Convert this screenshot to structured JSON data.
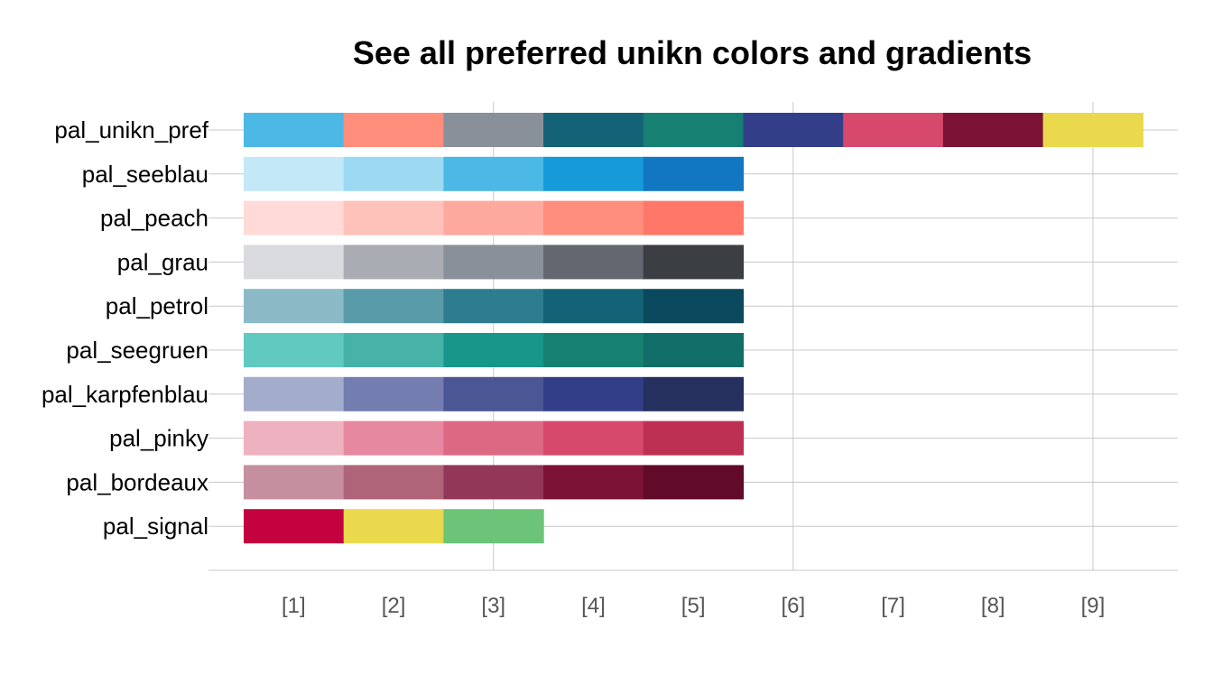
{
  "chart_data": {
    "type": "table",
    "title": "See all preferred unikn colors and gradients",
    "x_tick_labels": [
      "[1]",
      "[2]",
      "[3]",
      "[4]",
      "[5]",
      "[6]",
      "[7]",
      "[8]",
      "[9]"
    ],
    "grid": true,
    "palettes": [
      {
        "name": "pal_unikn_pref",
        "colors": [
          "#4CB8E6",
          "#FF8E7D",
          "#8A9099",
          "#136276",
          "#168073",
          "#323F88",
          "#D6486C",
          "#7C1235",
          "#EAD84D"
        ]
      },
      {
        "name": "pal_seeblau",
        "colors": [
          "#C3E8F7",
          "#9CDAF2",
          "#4CB8E6",
          "#169ADA",
          "#1277C2"
        ]
      },
      {
        "name": "pal_peach",
        "colors": [
          "#FFDAD7",
          "#FEC2BA",
          "#FEA99D",
          "#FF8E7D",
          "#FF7769"
        ]
      },
      {
        "name": "pal_grau",
        "colors": [
          "#DADBDF",
          "#A9ACB3",
          "#8A9099",
          "#636770",
          "#3B3E43"
        ]
      },
      {
        "name": "pal_petrol",
        "colors": [
          "#8BBAC6",
          "#5A9BAA",
          "#2D7D8F",
          "#136276",
          "#0B4A5E"
        ]
      },
      {
        "name": "pal_seegruen",
        "colors": [
          "#61C9C0",
          "#46B2A8",
          "#17968A",
          "#168073",
          "#126E68"
        ]
      },
      {
        "name": "pal_karpfenblau",
        "colors": [
          "#A4ACCC",
          "#737DB0",
          "#4B5694",
          "#323F88",
          "#25305F"
        ]
      },
      {
        "name": "pal_pinky",
        "colors": [
          "#EEB1C0",
          "#E688A0",
          "#DD6884",
          "#D6486C",
          "#BE3053"
        ]
      },
      {
        "name": "pal_bordeaux",
        "colors": [
          "#C58F9F",
          "#AF6479",
          "#933759",
          "#7C1235",
          "#620A2A"
        ]
      },
      {
        "name": "pal_signal",
        "colors": [
          "#C3023F",
          "#EAD84D",
          "#6BC477"
        ]
      }
    ]
  }
}
